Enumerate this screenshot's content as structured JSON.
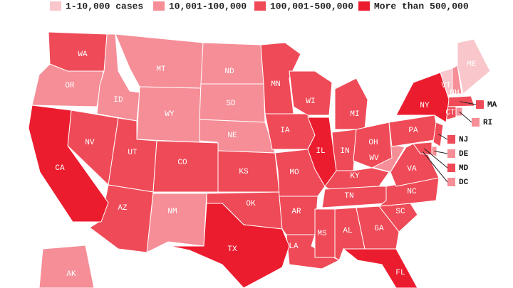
{
  "legend": [
    {
      "label": "1-10,000 cases",
      "color": "#f9c6cc",
      "states": [
        "ME",
        "VT"
      ]
    },
    {
      "label": "10,001-100,000",
      "color": "#f58e97",
      "states": [
        "OR",
        "ID",
        "MT",
        "WY",
        "ND",
        "SD",
        "NE",
        "NM",
        "WV",
        "AK",
        "NH",
        "RI",
        "DE",
        "DC"
      ]
    },
    {
      "label": "100,001-500,000",
      "color": "#ef4a57",
      "states": [
        "WA",
        "NV",
        "UT",
        "AZ",
        "CO",
        "KS",
        "OK",
        "MN",
        "IA",
        "MO",
        "AR",
        "LA",
        "WI",
        "MI",
        "IN",
        "OH",
        "KY",
        "TN",
        "MS",
        "AL",
        "GA",
        "SC",
        "NC",
        "VA",
        "PA",
        "CT",
        "MA",
        "NJ",
        "MD"
      ]
    },
    {
      "label": "More than 500,000",
      "color": "#ec1c2f",
      "states": [
        "CA",
        "TX",
        "IL",
        "NY",
        "FL"
      ]
    }
  ]
}
